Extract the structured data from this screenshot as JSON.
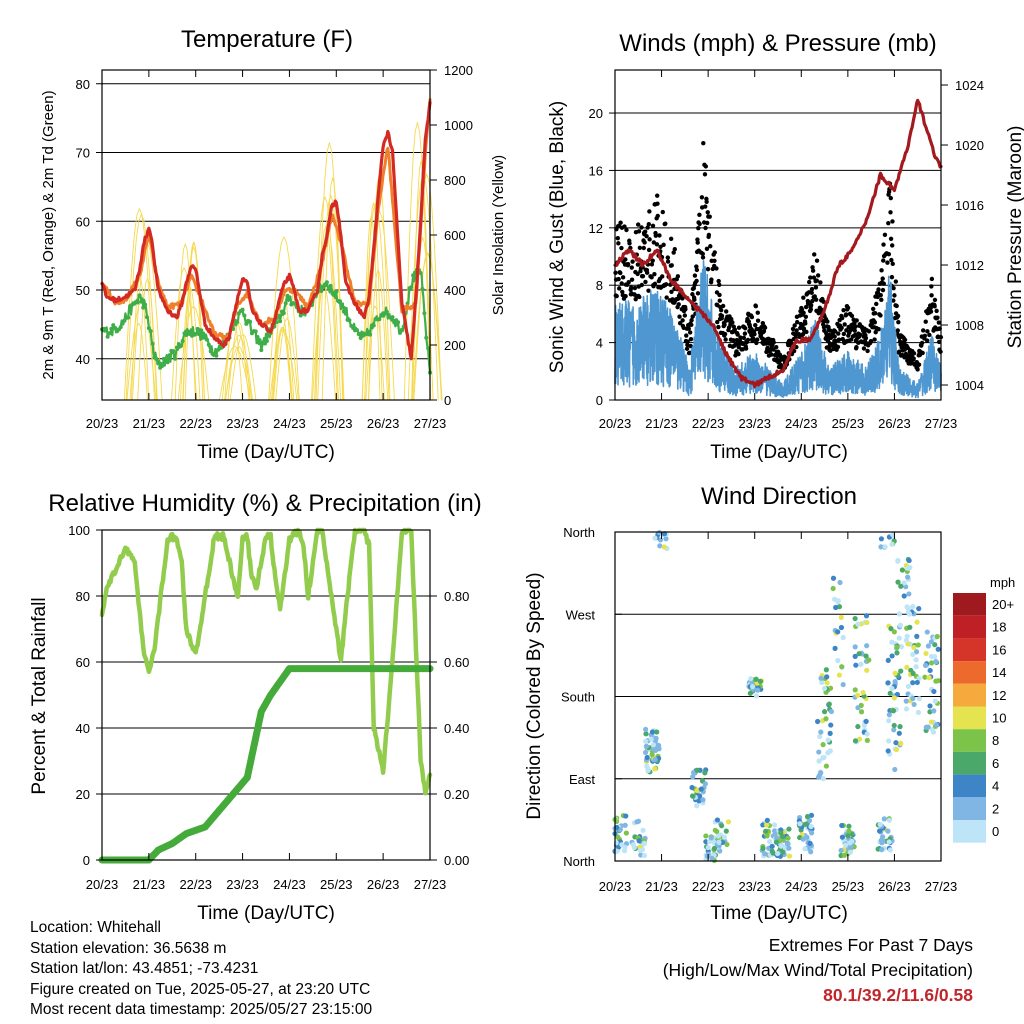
{
  "colors": {
    "temp_2m": "#d42a24",
    "temp_9m": "#f07f2a",
    "dewpoint": "#3fae49",
    "insolation": "#f5d94f",
    "wind_speed": "#4e97d1",
    "gust": "#000000",
    "pressure": "#a3191e",
    "rh": "#92cc4d",
    "precip": "#44ab3b",
    "extremes_text": "#c0272d"
  },
  "x_ticks": [
    "20/23",
    "21/23",
    "22/23",
    "23/23",
    "24/23",
    "25/23",
    "26/23",
    "27/23"
  ],
  "x_label": "Time (Day/UTC)",
  "charts": [
    {
      "id": "temperature",
      "type": "line",
      "title": "Temperature (F)",
      "ylabel_left": "2m & 9m T (Red, Orange) & 2m Td (Green)",
      "ylabel_right": "Solar Insolation (Yellow)",
      "yticks_left": [
        "40",
        "50",
        "60",
        "70",
        "80"
      ],
      "yticks_right": [
        "0",
        "200",
        "400",
        "600",
        "800",
        "1000",
        "1200"
      ],
      "ylim_left": [
        34,
        82
      ],
      "ylim_right": [
        0,
        1200
      ],
      "series": [
        {
          "name": "2m T",
          "x": [
            0,
            0.1,
            0.3,
            0.5,
            0.7,
            0.8,
            0.9,
            1.0,
            1.05,
            1.1,
            1.2,
            1.4,
            1.6,
            1.7,
            1.8,
            1.9,
            2.0,
            2.1,
            2.2,
            2.4,
            2.6,
            2.7,
            2.8,
            2.9,
            3.0,
            3.1,
            3.2,
            3.4,
            3.6,
            3.7,
            3.8,
            3.9,
            4.0,
            4.1,
            4.2,
            4.4,
            4.6,
            4.7,
            4.8,
            4.9,
            5.0,
            5.1,
            5.2,
            5.4,
            5.6,
            5.7,
            5.8,
            5.9,
            6.0,
            6.1,
            6.2,
            6.4,
            6.6,
            6.7,
            6.8,
            6.9,
            7.0
          ],
          "y": [
            51,
            49,
            48.5,
            49,
            50,
            53,
            57,
            59,
            58,
            55,
            50,
            47,
            46,
            48,
            51,
            53.5,
            53,
            49,
            45,
            43,
            42,
            43,
            46,
            49,
            51.5,
            51,
            47,
            45,
            44,
            46,
            49,
            51,
            52,
            50,
            47,
            47,
            50,
            55,
            58,
            62,
            63,
            58,
            51,
            48,
            46,
            49,
            56,
            64,
            71,
            73,
            70,
            48,
            40,
            49,
            60,
            72,
            77
          ]
        },
        {
          "name": "9m T",
          "x": [
            0,
            0.3,
            0.5,
            0.8,
            1.0,
            1.2,
            1.4,
            1.7,
            1.9,
            2.1,
            2.4,
            2.7,
            2.9,
            3.1,
            3.4,
            3.7,
            3.9,
            4.1,
            4.4,
            4.7,
            4.9,
            5.1,
            5.4,
            5.7,
            5.9,
            6.1,
            6.4,
            6.7,
            6.9,
            7.0
          ],
          "y": [
            51,
            48,
            48.5,
            52,
            58,
            51,
            47.5,
            48,
            52,
            49,
            43.5,
            43,
            48,
            49.5,
            45,
            46,
            50,
            50,
            47.5,
            54,
            61,
            57,
            48,
            48,
            62,
            71,
            47,
            48,
            70,
            78
          ]
        },
        {
          "name": "2m Td",
          "x": [
            0,
            0.2,
            0.4,
            0.6,
            0.8,
            0.9,
            1.0,
            1.1,
            1.2,
            1.4,
            1.6,
            1.8,
            2.0,
            2.2,
            2.4,
            2.6,
            2.8,
            3.0,
            3.2,
            3.4,
            3.6,
            3.8,
            4.0,
            4.2,
            4.4,
            4.6,
            4.8,
            5.0,
            5.2,
            5.4,
            5.6,
            5.8,
            6.0,
            6.2,
            6.4,
            6.6,
            6.8,
            6.9,
            7.0
          ],
          "y": [
            44,
            44,
            45,
            47,
            49,
            48,
            45,
            41,
            39,
            40,
            41,
            44,
            44,
            43,
            41,
            42,
            45,
            47,
            44,
            42,
            44,
            46,
            49,
            47,
            47,
            50,
            51,
            49,
            47,
            44,
            43,
            45,
            47,
            46,
            44,
            51,
            53,
            45,
            38
          ]
        },
        {
          "name": "Solar Insolation",
          "axis": "right",
          "x": [
            0.9,
            1.85,
            2.9,
            3.85,
            4.85,
            5.85,
            6.85
          ],
          "y": [
            780,
            600,
            420,
            640,
            1150,
            830,
            1080
          ]
        }
      ]
    },
    {
      "id": "winds",
      "type": "scatter",
      "title": "Winds (mph) & Pressure (mb)",
      "ylabel_left": "Sonic Wind & Gust (Blue, Black)",
      "ylabel_right": "Station Pressure (Maroon)",
      "yticks_left": [
        "0",
        "4",
        "8",
        "12",
        "16",
        "20"
      ],
      "yticks_right": [
        "1004",
        "1008",
        "1012",
        "1016",
        "1020",
        "1024"
      ],
      "ylim_left": [
        0,
        23
      ],
      "ylim_right": [
        1003,
        1025
      ],
      "series": [
        {
          "name": "Station Pressure",
          "axis": "right",
          "x": [
            0,
            0.3,
            0.6,
            0.9,
            1.2,
            1.5,
            1.8,
            2.1,
            2.4,
            2.7,
            3.0,
            3.3,
            3.6,
            3.9,
            4.2,
            4.5,
            4.8,
            5.1,
            5.4,
            5.7,
            6.0,
            6.3,
            6.5,
            6.7,
            6.9,
            7.0
          ],
          "y": [
            1012,
            1013,
            1012,
            1013,
            1011,
            1010,
            1009,
            1008,
            1006,
            1004.5,
            1004,
            1004.5,
            1005,
            1007,
            1007,
            1009,
            1012,
            1013,
            1015,
            1018,
            1017,
            1020,
            1023,
            1021,
            1019,
            1018.5
          ]
        }
      ]
    },
    {
      "id": "humidity",
      "type": "line",
      "title": "Relative Humidity (%) & Precipitation (in)",
      "ylabel_left": "Percent & Total Rainfall",
      "yticks_left": [
        "0",
        "20",
        "40",
        "60",
        "80",
        "100"
      ],
      "yticks_right": [
        "0.00",
        "0.20",
        "0.40",
        "0.60",
        "0.80"
      ],
      "ylim_left": [
        0,
        100
      ],
      "ylim_right": [
        0,
        1.0
      ],
      "series": [
        {
          "name": "RH",
          "x": [
            0,
            0.1,
            0.3,
            0.5,
            0.7,
            0.8,
            0.9,
            1.0,
            1.1,
            1.3,
            1.4,
            1.5,
            1.6,
            1.7,
            1.8,
            2.0,
            2.2,
            2.4,
            2.6,
            2.8,
            2.9,
            3.0,
            3.1,
            3.2,
            3.3,
            3.5,
            3.6,
            3.7,
            3.8,
            4.0,
            4.2,
            4.3,
            4.4,
            4.6,
            4.7,
            4.8,
            5.0,
            5.1,
            5.2,
            5.4,
            5.6,
            5.7,
            5.8,
            6.0,
            6.2,
            6.4,
            6.6,
            6.8,
            6.9,
            7.0
          ],
          "y": [
            75,
            82,
            88,
            95,
            90,
            75,
            62,
            58,
            62,
            85,
            97,
            98,
            97,
            90,
            70,
            62,
            80,
            98,
            98,
            85,
            80,
            97,
            98,
            85,
            83,
            98,
            98,
            85,
            76,
            97,
            100,
            95,
            80,
            100,
            100,
            90,
            70,
            60,
            75,
            100,
            100,
            95,
            40,
            27,
            60,
            100,
            100,
            30,
            21,
            25
          ]
        },
        {
          "name": "Precipitation",
          "axis": "right",
          "x": [
            0,
            1.0,
            1.2,
            1.5,
            1.8,
            2.2,
            2.5,
            2.8,
            3.1,
            3.4,
            3.6,
            3.9,
            4.0,
            7.0
          ],
          "y": [
            0,
            0,
            0.03,
            0.05,
            0.08,
            0.1,
            0.15,
            0.2,
            0.25,
            0.45,
            0.5,
            0.56,
            0.58,
            0.58
          ]
        }
      ]
    },
    {
      "id": "wind_direction",
      "type": "scatter",
      "title": "Wind Direction",
      "ylabel_left": "Direction (Colored By Speed)",
      "ylabel_ticks": [
        "North",
        "East",
        "South",
        "West",
        "North"
      ],
      "legend_title": "mph",
      "legend_labels": [
        "20+",
        "18",
        "16",
        "14",
        "12",
        "10",
        "8",
        "6",
        "4",
        "2",
        "0"
      ],
      "legend_colors": [
        "#9e1a1f",
        "#be2026",
        "#d43528",
        "#ec6a2c",
        "#f6a93c",
        "#e5e34f",
        "#7cc449",
        "#4aa86a",
        "#3d85c6",
        "#80b6e3",
        "#bde4f7"
      ]
    }
  ],
  "footer": {
    "location": "Location: Whitehall",
    "elevation": "Station elevation: 36.5638 m",
    "latlon": "Station lat/lon: 43.4851; -73.4231",
    "created": "Figure created on Tue, 2025-05-27, at 23:20 UTC",
    "recent": "Most recent data timestamp: 2025/05/27 23:15:00"
  },
  "extremes": {
    "title": "Extremes For Past 7 Days",
    "subtitle": "(High/Low/Max Wind/Total Precipitation)",
    "values": "80.1/39.2/11.6/0.58"
  }
}
